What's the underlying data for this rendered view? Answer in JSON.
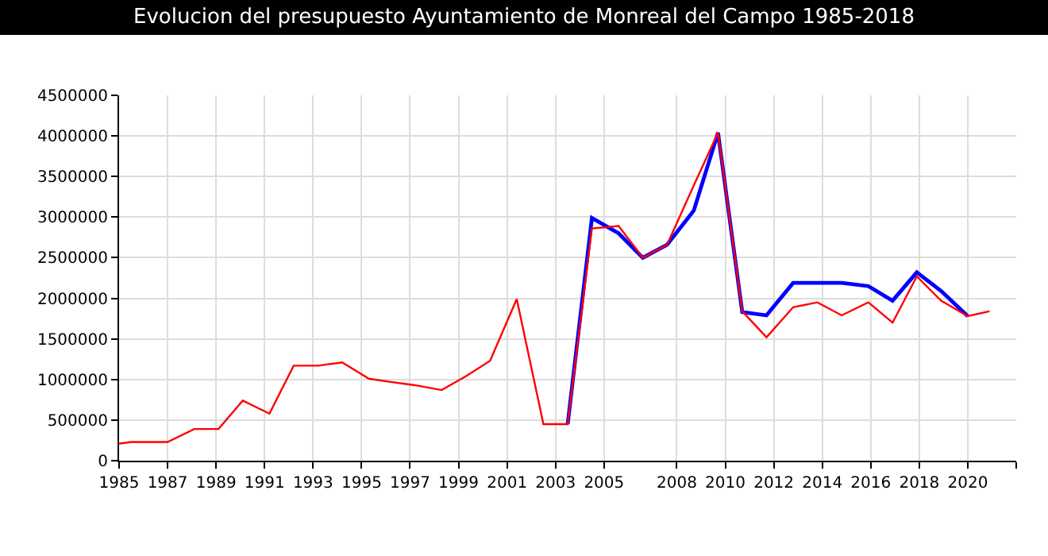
{
  "chart_data": {
    "type": "line",
    "title": "Evolucion del presupuesto Ayuntamiento de Monreal del Campo 1985-2018",
    "xlim": [
      1985,
      2022
    ],
    "xticks": [
      1985,
      1987,
      1989,
      1991,
      1993,
      1995,
      1997,
      1999,
      2001,
      2003,
      2005,
      2008,
      2010,
      2012,
      2014,
      2016,
      2018,
      2020,
      {
        "value": 2022,
        "label": null
      }
    ],
    "ylim": [
      0,
      4500000
    ],
    "yticks": [
      0,
      500000,
      1000000,
      1500000,
      2000000,
      2500000,
      3000000,
      3500000,
      4000000,
      4500000
    ],
    "grid": true,
    "marker": "none",
    "line_style": "solid",
    "series": [
      {
        "color": "#0000ff",
        "x": [
          2003.5,
          2004.5,
          2005.6,
          2006.6,
          2007.6,
          2008.7,
          2009.7,
          2010.7,
          2011.7,
          2012.8,
          2013.8,
          2014.8,
          2015.9,
          2016.9,
          2017.9,
          2018.9,
          2020.0
        ],
        "values": [
          450000,
          2990000,
          2800000,
          2500000,
          2660000,
          3080000,
          4040000,
          1830000,
          1790000,
          2190000,
          2190000,
          2190000,
          2150000,
          1970000,
          2320000,
          2090000,
          1780000
        ]
      },
      {
        "color": "#ff0000",
        "x": [
          1985.0,
          1985.5,
          1987.0,
          1988.1,
          1989.1,
          1990.1,
          1991.2,
          1992.2,
          1993.2,
          1994.2,
          1995.3,
          1996.2,
          1997.2,
          1998.3,
          1999.3,
          2000.3,
          2001.4,
          2002.5,
          2003.5,
          2004.5,
          2005.6,
          2006.6,
          2007.6,
          2008.7,
          2009.7,
          2010.7,
          2011.7,
          2012.8,
          2013.8,
          2014.8,
          2015.9,
          2016.9,
          2017.9,
          2018.9,
          2020.0,
          2020.9
        ],
        "values": [
          210000,
          230000,
          230000,
          390000,
          390000,
          740000,
          580000,
          1170000,
          1170000,
          1210000,
          1010000,
          970000,
          930000,
          870000,
          1040000,
          1230000,
          1990000,
          450000,
          450000,
          2860000,
          2890000,
          2500000,
          2660000,
          3390000,
          4040000,
          1840000,
          1520000,
          1890000,
          1950000,
          1790000,
          1950000,
          1700000,
          2270000,
          1970000,
          1780000,
          1840000
        ]
      }
    ]
  }
}
